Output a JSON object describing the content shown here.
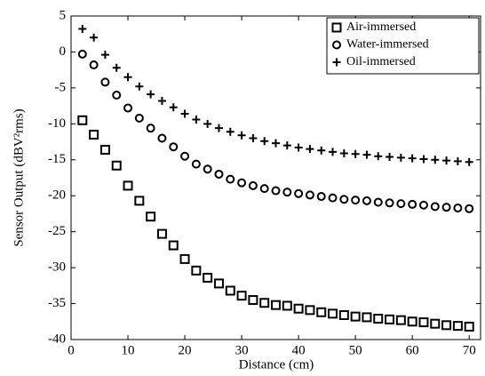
{
  "chart_data": {
    "type": "scatter",
    "x_label": "Distance (cm)",
    "y_label": "Sensor Output (dBV²rms)",
    "xlim": [
      0,
      72
    ],
    "ylim": [
      -40,
      5
    ],
    "xticks": [
      0,
      10,
      20,
      30,
      40,
      50,
      60,
      70
    ],
    "yticks": [
      -40,
      -35,
      -30,
      -25,
      -20,
      -15,
      -10,
      -5,
      0,
      5
    ],
    "grid": false,
    "legend": "upper right",
    "x": [
      2,
      4,
      6,
      8,
      10,
      12,
      14,
      16,
      18,
      20,
      22,
      24,
      26,
      28,
      30,
      32,
      34,
      36,
      38,
      40,
      42,
      44,
      46,
      48,
      50,
      52,
      54,
      56,
      58,
      60,
      62,
      64,
      66,
      68,
      70
    ],
    "series": [
      {
        "name": "Air-immersed",
        "color": "#000000",
        "marker": "square",
        "values": [
          -9.5,
          -11.5,
          -13.6,
          -15.8,
          -18.6,
          -20.7,
          -22.9,
          -25.3,
          -26.9,
          -28.8,
          -30.4,
          -31.4,
          -32.2,
          -33.2,
          -33.9,
          -34.5,
          -34.9,
          -35.2,
          -35.3,
          -35.7,
          -35.9,
          -36.2,
          -36.4,
          -36.6,
          -36.8,
          -36.9,
          -37.1,
          -37.2,
          -37.3,
          -37.5,
          -37.6,
          -37.8,
          -38.0,
          -38.1,
          -38.2
        ]
      },
      {
        "name": "Water-immersed",
        "color": "#000000",
        "marker": "circle",
        "values": [
          -0.3,
          -1.8,
          -4.2,
          -6.0,
          -7.8,
          -9.2,
          -10.6,
          -12.0,
          -13.2,
          -14.5,
          -15.6,
          -16.3,
          -17.0,
          -17.7,
          -18.2,
          -18.6,
          -19.0,
          -19.3,
          -19.5,
          -19.7,
          -19.9,
          -20.1,
          -20.3,
          -20.5,
          -20.6,
          -20.7,
          -20.9,
          -21.0,
          -21.1,
          -21.2,
          -21.3,
          -21.5,
          -21.6,
          -21.7,
          -21.8
        ]
      },
      {
        "name": "Oil-immersed",
        "color": "#000000",
        "marker": "plus",
        "values": [
          3.2,
          2.0,
          -0.4,
          -2.2,
          -3.5,
          -4.8,
          -5.9,
          -6.8,
          -7.7,
          -8.6,
          -9.4,
          -10.0,
          -10.6,
          -11.1,
          -11.6,
          -12.0,
          -12.4,
          -12.7,
          -13.0,
          -13.3,
          -13.5,
          -13.7,
          -13.9,
          -14.1,
          -14.2,
          -14.3,
          -14.5,
          -14.6,
          -14.7,
          -14.8,
          -14.9,
          -15.0,
          -15.1,
          -15.2,
          -15.3
        ]
      }
    ]
  }
}
